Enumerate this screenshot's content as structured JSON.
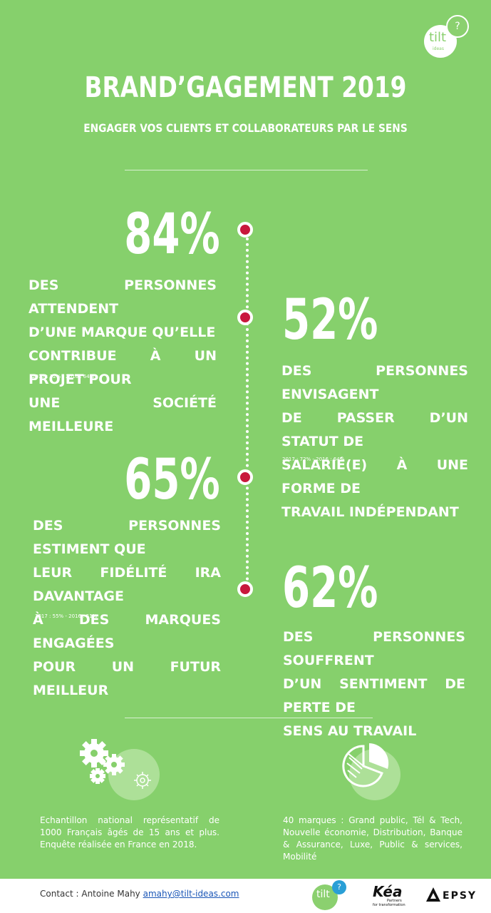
{
  "header": {
    "title": "BRAND’GAGEMENT 2019",
    "subtitle": "ENGAGER VOS CLIENTS ET COLLABORATEURS PAR LE SENS"
  },
  "logo": {
    "text": "tilt",
    "sub": "ideas",
    "mark": "?"
  },
  "stats": [
    {
      "value": "84%",
      "lines": [
        "DES PERSONNES ATTENDENT",
        "D’UNE MARQUE QU’ELLE",
        "CONTRIBUE À UN PROJET POUR",
        "UNE SOCIÉTÉ MEILLEURE"
      ],
      "note": "2017 : 72% - 2016 : 64%"
    },
    {
      "value": "52%",
      "lines": [
        "DES PERSONNES ENVISAGENT",
        "DE PASSER D’UN STATUT DE",
        "SALARIÉ(E) À UNE FORME DE",
        "TRAVAIL INDÉPENDANT"
      ],
      "note": "2017 : 72% - 2016 : 64%"
    },
    {
      "value": "65%",
      "lines": [
        "DES PERSONNES ESTIMENT QUE",
        "LEUR FIDÉLITÉ IRA DAVANTAGE",
        "À DES MARQUES ENGAGÉES",
        "POUR UN FUTUR MEILLEUR"
      ],
      "note": "2017 : 55% - 2016 : 51%"
    },
    {
      "value": "62%",
      "lines": [
        "DES PERSONNES SOUFFRENT",
        "D’UN SENTIMENT DE PERTE DE",
        "SENS AU TRAVAIL"
      ],
      "note": ""
    }
  ],
  "info": {
    "sample": "Echantillon national représentatif de 1000 Français âgés de 15 ans et plus. Enquête réalisée en France en 2018.",
    "brands": "40 marques : Grand public, Tél & Tech, Nouvelle économie, Distribution, Banque & Assurance, Luxe, Public & services, Mobilité"
  },
  "icons": {
    "left": "gears-icon",
    "right": "pie-chart-icon"
  },
  "footer": {
    "contact_label": "Contact : Antoine Mahy ",
    "email": "amahy@tilt-ideas.com",
    "kea": "Kéa",
    "kea_sub1": "Partners",
    "kea_sub2": "for transformation",
    "epsy": "EPSY"
  },
  "colors": {
    "green": "#86d06c",
    "dot": "#c8183c"
  }
}
